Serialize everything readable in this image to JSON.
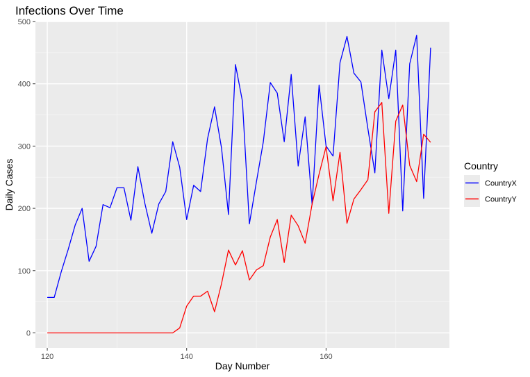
{
  "chart_data": {
    "type": "line",
    "title": "Infections Over Time",
    "xlabel": "Day Number",
    "ylabel": "Daily Cases",
    "xlim": [
      118.3,
      177.7
    ],
    "ylim": [
      -24,
      500
    ],
    "x_ticks": [
      120,
      140,
      160
    ],
    "y_ticks": [
      0,
      100,
      200,
      300,
      400,
      500
    ],
    "grid": true,
    "legend": {
      "title": "Country",
      "placement": "right"
    },
    "series": [
      {
        "name": "CountryX",
        "color": "#0000ff",
        "x": [
          120,
          121,
          122,
          123,
          124,
          125,
          126,
          127,
          128,
          129,
          130,
          131,
          132,
          133,
          134,
          135,
          136,
          137,
          138,
          139,
          140,
          141,
          142,
          143,
          144,
          145,
          146,
          147,
          148,
          149,
          150,
          151,
          152,
          153,
          154,
          155,
          156,
          157,
          158,
          159,
          160,
          161,
          162,
          163,
          164,
          165,
          166,
          167,
          168,
          169,
          170,
          171,
          172,
          173,
          174,
          175
        ],
        "values": [
          57,
          57,
          98,
          134,
          173,
          200,
          115,
          139,
          206,
          201,
          233,
          233,
          181,
          267,
          208,
          160,
          207,
          227,
          307,
          266,
          182,
          237,
          227,
          312,
          363,
          297,
          190,
          431,
          372,
          175,
          242,
          307,
          402,
          385,
          307,
          415,
          268,
          347,
          206,
          398,
          300,
          284,
          434,
          476,
          417,
          403,
          328,
          257,
          454,
          376,
          454,
          196,
          432,
          478,
          216,
          458
        ]
      },
      {
        "name": "CountryY",
        "color": "#ff0000",
        "x": [
          120,
          121,
          122,
          123,
          124,
          125,
          126,
          127,
          128,
          129,
          130,
          131,
          132,
          133,
          134,
          135,
          136,
          137,
          138,
          139,
          140,
          141,
          142,
          143,
          144,
          145,
          146,
          147,
          148,
          149,
          150,
          151,
          152,
          153,
          154,
          155,
          156,
          157,
          158,
          159,
          160,
          161,
          162,
          163,
          164,
          165,
          166,
          167,
          168,
          169,
          170,
          171,
          172,
          173,
          174,
          175
        ],
        "values": [
          0,
          0,
          0,
          0,
          0,
          0,
          0,
          0,
          0,
          0,
          0,
          0,
          0,
          0,
          0,
          0,
          0,
          0,
          0,
          8,
          43,
          59,
          59,
          67,
          34,
          79,
          133,
          109,
          132,
          85,
          101,
          108,
          154,
          182,
          113,
          189,
          172,
          144,
          207,
          255,
          299,
          212,
          290,
          176,
          215,
          230,
          246,
          355,
          370,
          192,
          340,
          366,
          269,
          243,
          319,
          306
        ]
      }
    ]
  }
}
